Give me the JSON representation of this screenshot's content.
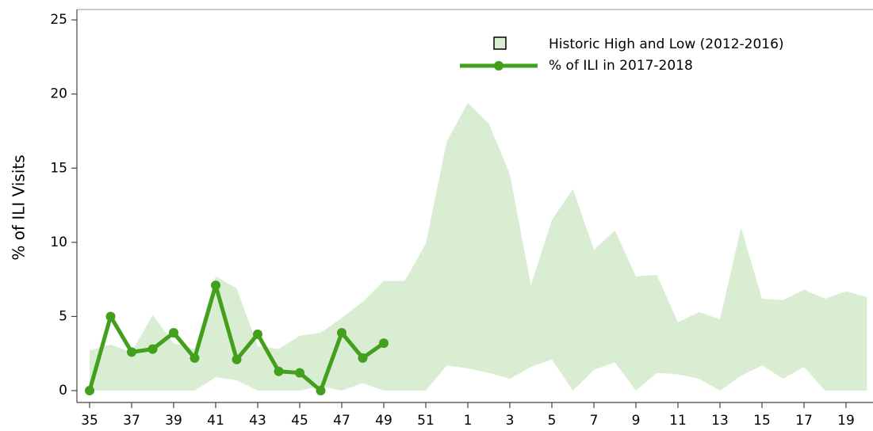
{
  "chart_data": {
    "type": "line",
    "y_label": "% of ILI Visits",
    "categories": [
      "35",
      null,
      "37",
      null,
      "39",
      null,
      "41",
      null,
      "43",
      null,
      "45",
      null,
      "47",
      null,
      "49",
      null,
      "51",
      null,
      "1",
      null,
      "3",
      null,
      "5",
      null,
      "7",
      null,
      "9",
      null,
      "11",
      null,
      "13",
      null,
      "15",
      null,
      "17",
      null,
      "19",
      null
    ],
    "band": {
      "name": "Historic High and Low (2012-2016)",
      "color": "#d9edd3",
      "high": [
        2.7,
        3.1,
        2.6,
        5.1,
        3.2,
        2.8,
        7.7,
        6.9,
        3.0,
        2.8,
        3.7,
        3.9,
        4.9,
        6.0,
        7.4,
        7.4,
        9.9,
        16.8,
        19.4,
        18.0,
        14.6,
        7.1,
        11.5,
        13.6,
        9.5,
        10.8,
        7.7,
        7.8,
        4.6,
        5.3,
        4.8,
        11.0,
        6.2,
        6.1,
        6.8,
        6.2,
        6.7,
        6.3
      ],
      "low": [
        0,
        0,
        0,
        0,
        0,
        0,
        0.9,
        0.7,
        0,
        0,
        0,
        0.3,
        0,
        0.5,
        0,
        0,
        0,
        1.7,
        1.5,
        1.2,
        0.8,
        1.6,
        2.1,
        0,
        1.4,
        1.9,
        0,
        1.2,
        1.1,
        0.8,
        0,
        1.0,
        1.7,
        0.8,
        1.6,
        0,
        0,
        0
      ]
    },
    "series": [
      {
        "name": "% of ILI in 2017-2018",
        "color": "#43a01c",
        "values": [
          0,
          5.0,
          2.6,
          2.8,
          3.9,
          2.2,
          7.1,
          2.1,
          3.8,
          1.3,
          1.2,
          0,
          3.9,
          2.2,
          3.2,
          null,
          null,
          null,
          null,
          null,
          null,
          null,
          null,
          null,
          null,
          null,
          null,
          null,
          null,
          null,
          null,
          null,
          null,
          null,
          null,
          null,
          null,
          null
        ]
      }
    ],
    "ylim": [
      -0.8,
      25.7
    ],
    "yticks": [
      0,
      5,
      10,
      15,
      20,
      25
    ],
    "legend": "top-right"
  }
}
